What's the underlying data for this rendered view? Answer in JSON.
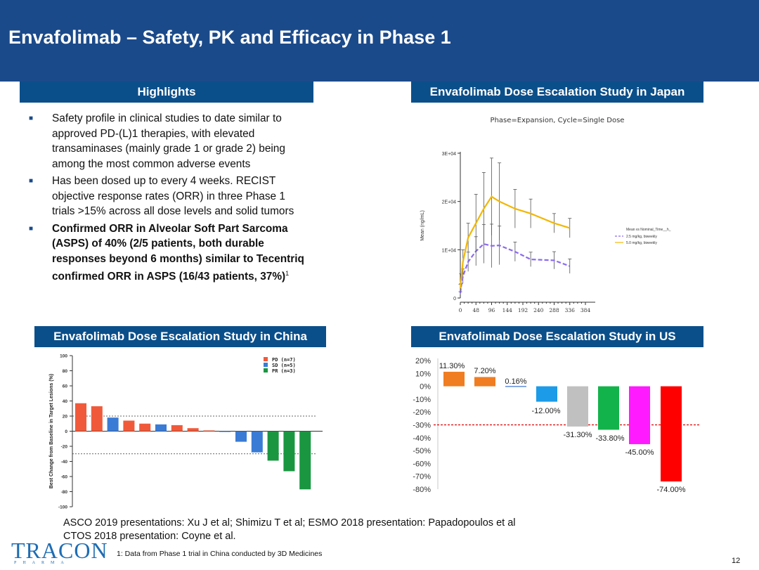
{
  "title": "Envafolimab – Safety, PK and Efficacy in Phase 1",
  "highlights": {
    "header": "Highlights",
    "bullets": [
      "Safety profile in clinical studies to date similar to approved PD-(L)1 therapies, with elevated transaminases (mainly grade 1 or grade 2) being among the most common adverse events",
      "Has been dosed up to every 4 weeks. RECIST objective response rates (ORR) in three Phase 1 trials >15% across all dose levels and solid tumors",
      "Confirmed ORR in Alveolar Soft Part Sarcoma (ASPS) of 40% (2/5 patients, both durable responses beyond 6 months) similar to Tecentriq confirmed ORR in ASPS (16/43 patients, 37%)"
    ],
    "footnote_marker": "1"
  },
  "japan": {
    "header": "Envafolimab Dose Escalation Study in Japan"
  },
  "china": {
    "header": "Envafolimab Dose Escalation Study in China"
  },
  "us": {
    "header": "Envafolimab Dose Escalation Study in US"
  },
  "references": {
    "line1": "ASCO 2019 presentations:  Xu J et al; Shimizu T et al; ESMO 2018 presentation: Papadopoulos et al",
    "line2": "CTOS 2018 presentation: Coyne et al."
  },
  "logo": {
    "word": "TRACON",
    "sub": "PHARMA"
  },
  "footnote": "1: Data from Phase 1 trial in China conducted by 3D Medicines",
  "page_number": "12",
  "chart_data": [
    {
      "id": "japan",
      "type": "line",
      "title": "Phase=Expansion, Cycle=Single Dose",
      "xlabel": "",
      "ylabel": "Mean (ng/mL)",
      "x_ticks": [
        "0",
        "48",
        "96",
        "144",
        "192",
        "240",
        "288",
        "336",
        "384"
      ],
      "y_ticks": [
        "0",
        "1E+04",
        "2E+04",
        "3E+04"
      ],
      "xlim": [
        0,
        384
      ],
      "ylim": [
        0,
        30000
      ],
      "legend_title": "Mean vs Nominal_Time__h_",
      "legend_position": "right",
      "series": [
        {
          "name": "2.5 mg/kg, biweekly",
          "color": "#8a6bf0",
          "dashed": true,
          "x": [
            0,
            2,
            8,
            24,
            48,
            72,
            96,
            120,
            168,
            216,
            288,
            336
          ],
          "y": [
            1000,
            2200,
            4500,
            7500,
            9700,
            11200,
            10800,
            10900,
            9600,
            8000,
            7800,
            6600
          ],
          "err": [
            300,
            800,
            1500,
            2000,
            3000,
            4000,
            4500,
            4000,
            2000,
            1500,
            1800,
            1500
          ]
        },
        {
          "name": "5.0 mg/kg, biweekly",
          "color": "#f2b705",
          "dashed": false,
          "x": [
            0,
            2,
            8,
            24,
            48,
            72,
            96,
            120,
            168,
            216,
            288,
            336
          ],
          "y": [
            2000,
            3500,
            7500,
            12500,
            15500,
            18500,
            21000,
            20000,
            18500,
            17500,
            15500,
            14500
          ],
          "err": [
            800,
            1500,
            2500,
            3000,
            6000,
            7500,
            8000,
            8000,
            4000,
            3000,
            2000,
            2000
          ]
        }
      ]
    },
    {
      "id": "china",
      "type": "bar",
      "title": "",
      "xlabel": "",
      "ylabel": "Best Change from Baseline in Target Lesions (%)",
      "y_ticks": [
        "100",
        "80",
        "60",
        "40",
        "20",
        "0",
        "-20",
        "-40",
        "-60",
        "-80",
        "-100"
      ],
      "ylim": [
        -100,
        100
      ],
      "reference_lines": [
        20,
        -30
      ],
      "legend": [
        {
          "label": "PD (n=7)",
          "color": "#f05a3a"
        },
        {
          "label": "SD (n=5)",
          "color": "#3a7bd5"
        },
        {
          "label": "PR (n=3)",
          "color": "#1a9641"
        }
      ],
      "legend_position": "top-right",
      "values": [
        37,
        33,
        18,
        14,
        10,
        9,
        8,
        4,
        1,
        -1,
        -14,
        -28,
        -39,
        -53,
        -77
      ],
      "groups": [
        "PD",
        "PD",
        "SD",
        "PD",
        "PD",
        "SD",
        "PD",
        "PD",
        "PD",
        "SD",
        "SD",
        "SD",
        "PR",
        "PR",
        "PR"
      ]
    },
    {
      "id": "us",
      "type": "bar",
      "title": "",
      "xlabel": "",
      "ylabel": "",
      "y_ticks": [
        "20%",
        "10%",
        "0%",
        "-10%",
        "-20%",
        "-30%",
        "-40%",
        "-50%",
        "-60%",
        "-70%",
        "-80%"
      ],
      "ylim": [
        -80,
        20
      ],
      "reference_lines": [
        -30
      ],
      "values": [
        11.3,
        7.2,
        0.16,
        -12.0,
        -31.3,
        -33.8,
        -45.0,
        -74.0
      ],
      "labels": [
        "11.30%",
        "7.20%",
        "0.16%",
        "-12.00%",
        "-31.30%",
        "-33.80%",
        "-45.00%",
        "-74.00%"
      ],
      "colors": [
        "#f07d22",
        "#f07d22",
        "#3a6fd0",
        "#1b9be8",
        "#c0c0c0",
        "#13b34b",
        "#ff1aff",
        "#ff0000"
      ]
    }
  ]
}
